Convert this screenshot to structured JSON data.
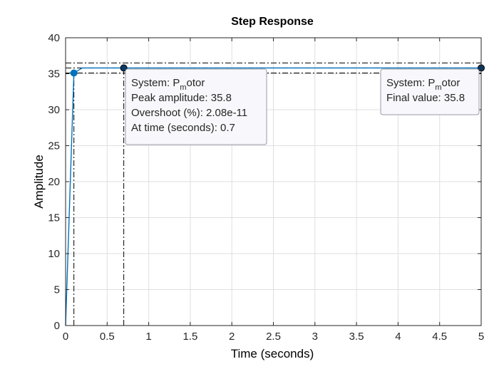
{
  "chart_data": {
    "type": "line",
    "title": "Step Response",
    "xlabel": "Time (seconds)",
    "ylabel": "Amplitude",
    "xlim": [
      0,
      5
    ],
    "ylim": [
      0,
      40
    ],
    "xticks": [
      0,
      0.5,
      1,
      1.5,
      2,
      2.5,
      3,
      3.5,
      4,
      4.5,
      5
    ],
    "xtick_labels": [
      "0",
      "0.5",
      "1",
      "1.5",
      "2",
      "2.5",
      "3",
      "3.5",
      "4",
      "4.5",
      "5"
    ],
    "yticks": [
      0,
      5,
      10,
      15,
      20,
      25,
      30,
      35,
      40
    ],
    "ytick_labels": [
      "0",
      "5",
      "10",
      "15",
      "20",
      "25",
      "30",
      "35",
      "40"
    ],
    "grid": true,
    "series": [
      {
        "color": "#0072BD",
        "x": [
          0,
          0.1,
          0.2,
          0.7,
          1,
          2,
          3,
          4,
          5
        ],
        "y": [
          0,
          35.1,
          35.8,
          35.8,
          35.8,
          35.8,
          35.8,
          35.8,
          35.8
        ]
      }
    ],
    "markers": [
      {
        "name": "rise",
        "x": 0.1,
        "y": 35.1,
        "color": "#0072BD"
      },
      {
        "name": "peak",
        "x": 0.7,
        "y": 35.8,
        "color": "#0072BD"
      },
      {
        "name": "final",
        "x": 5,
        "y": 35.8,
        "color": "#0072BD"
      }
    ],
    "reference_lines": {
      "dashdot_horizontal_y": [
        36.5,
        35.8,
        35.1
      ],
      "dashdot_vertical_x": [
        0.1,
        0.7
      ]
    },
    "datatips": [
      {
        "name": "peak",
        "system_prefix": "System: P",
        "system_sub": "m",
        "system_suffix": "otor",
        "lines": [
          "Peak amplitude: 35.8",
          "Overshoot (%): 2.08e-11",
          "At time (seconds): 0.7"
        ]
      },
      {
        "name": "final",
        "system_prefix": "System: P",
        "system_sub": "m",
        "system_suffix": "otor",
        "lines": [
          "Final value: 35.8"
        ]
      }
    ]
  },
  "colors": {
    "line": "#0072BD",
    "grid": "#dfdfdf",
    "axes": "#262626",
    "datatip_bg": "#f8f8fc",
    "datatip_border": "#9a9aa8"
  }
}
